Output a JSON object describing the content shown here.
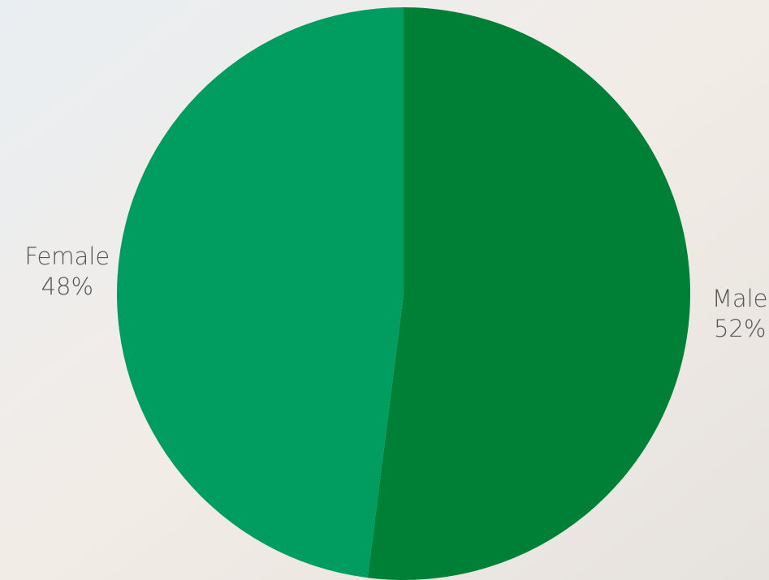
{
  "chart_data": {
    "type": "pie",
    "categories": [
      "Male",
      "Female"
    ],
    "values": [
      52,
      48
    ],
    "value_labels": [
      "52%",
      "48%"
    ],
    "colors": [
      "#007f36",
      "#009c60"
    ],
    "start_angle": 0,
    "direction": "clockwise"
  }
}
